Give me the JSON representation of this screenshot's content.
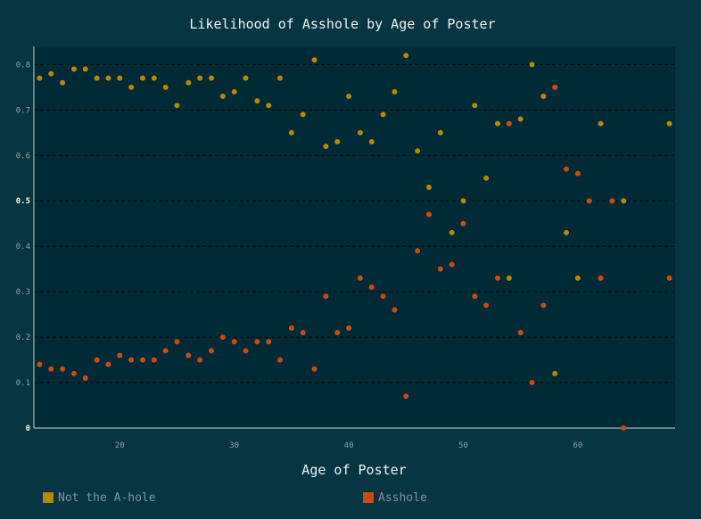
{
  "chart_data": {
    "type": "scatter",
    "title": "Likelihood of Asshole by Age of Poster",
    "xlabel": "Age of Poster",
    "ylabel": "",
    "xlim": [
      12.5,
      68.5
    ],
    "ylim": [
      0,
      0.84
    ],
    "xticks": [
      20,
      30,
      40,
      50,
      60
    ],
    "yticks": [
      0,
      0.1,
      0.2,
      0.3,
      0.4,
      0.5,
      0.6,
      0.7,
      0.8
    ],
    "ytick_labels": [
      "0",
      "0.1",
      "0.2",
      "0.3",
      "0.4",
      "0.5",
      "0.6",
      "0.7",
      "0.8"
    ],
    "grid": "horizontal dashed",
    "legend_position": "bottom",
    "series": [
      {
        "name": "Not the A-hole",
        "color": "#b58900",
        "points": [
          [
            13,
            0.77
          ],
          [
            14,
            0.78
          ],
          [
            15,
            0.76
          ],
          [
            16,
            0.79
          ],
          [
            17,
            0.79
          ],
          [
            18,
            0.77
          ],
          [
            19,
            0.77
          ],
          [
            20,
            0.77
          ],
          [
            21,
            0.75
          ],
          [
            22,
            0.77
          ],
          [
            23,
            0.77
          ],
          [
            24,
            0.75
          ],
          [
            25,
            0.71
          ],
          [
            26,
            0.76
          ],
          [
            27,
            0.77
          ],
          [
            28,
            0.77
          ],
          [
            29,
            0.73
          ],
          [
            30,
            0.74
          ],
          [
            31,
            0.77
          ],
          [
            32,
            0.72
          ],
          [
            33,
            0.71
          ],
          [
            34,
            0.77
          ],
          [
            35,
            0.65
          ],
          [
            36,
            0.69
          ],
          [
            37,
            0.81
          ],
          [
            38,
            0.62
          ],
          [
            39,
            0.63
          ],
          [
            40,
            0.73
          ],
          [
            41,
            0.65
          ],
          [
            42,
            0.63
          ],
          [
            43,
            0.69
          ],
          [
            44,
            0.74
          ],
          [
            45,
            0.82
          ],
          [
            46,
            0.61
          ],
          [
            47,
            0.53
          ],
          [
            48,
            0.65
          ],
          [
            49,
            0.43
          ],
          [
            50,
            0.5
          ],
          [
            51,
            0.71
          ],
          [
            52,
            0.55
          ],
          [
            53,
            0.67
          ],
          [
            54,
            0.33
          ],
          [
            55,
            0.68
          ],
          [
            56,
            0.8
          ],
          [
            57,
            0.73
          ],
          [
            58,
            0.12
          ],
          [
            59,
            0.43
          ],
          [
            60,
            0.33
          ],
          [
            62,
            0.67
          ],
          [
            64,
            0.5
          ],
          [
            68,
            0.67
          ]
        ]
      },
      {
        "name": "Asshole",
        "color": "#cb4b16",
        "points": [
          [
            13,
            0.14
          ],
          [
            14,
            0.13
          ],
          [
            15,
            0.13
          ],
          [
            16,
            0.12
          ],
          [
            17,
            0.11
          ],
          [
            18,
            0.15
          ],
          [
            19,
            0.14
          ],
          [
            20,
            0.16
          ],
          [
            21,
            0.15
          ],
          [
            22,
            0.15
          ],
          [
            23,
            0.15
          ],
          [
            24,
            0.17
          ],
          [
            25,
            0.19
          ],
          [
            26,
            0.16
          ],
          [
            27,
            0.15
          ],
          [
            28,
            0.17
          ],
          [
            29,
            0.2
          ],
          [
            30,
            0.19
          ],
          [
            31,
            0.17
          ],
          [
            32,
            0.19
          ],
          [
            33,
            0.19
          ],
          [
            34,
            0.15
          ],
          [
            35,
            0.22
          ],
          [
            36,
            0.21
          ],
          [
            37,
            0.13
          ],
          [
            38,
            0.29
          ],
          [
            39,
            0.21
          ],
          [
            40,
            0.22
          ],
          [
            41,
            0.33
          ],
          [
            42,
            0.31
          ],
          [
            43,
            0.29
          ],
          [
            44,
            0.26
          ],
          [
            45,
            0.07
          ],
          [
            46,
            0.39
          ],
          [
            47,
            0.47
          ],
          [
            48,
            0.35
          ],
          [
            49,
            0.36
          ],
          [
            50,
            0.45
          ],
          [
            51,
            0.29
          ],
          [
            52,
            0.27
          ],
          [
            53,
            0.33
          ],
          [
            54,
            0.67
          ],
          [
            55,
            0.21
          ],
          [
            56,
            0.1
          ],
          [
            57,
            0.27
          ],
          [
            58,
            0.75
          ],
          [
            59,
            0.57
          ],
          [
            60,
            0.56
          ],
          [
            61,
            0.5
          ],
          [
            62,
            0.33
          ],
          [
            63,
            0.5
          ],
          [
            64,
            0.0
          ],
          [
            68,
            0.33
          ]
        ]
      }
    ]
  }
}
